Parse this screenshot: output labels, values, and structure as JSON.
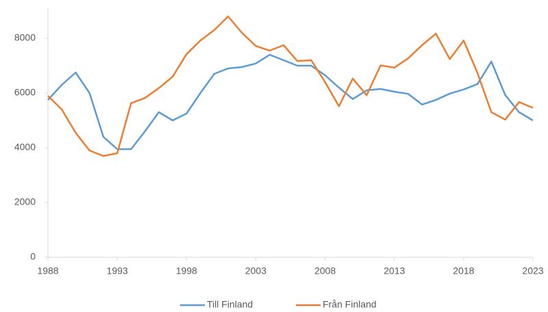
{
  "chart_data": {
    "type": "line",
    "x": [
      1988,
      1989,
      1990,
      1991,
      1992,
      1993,
      1994,
      1995,
      1996,
      1997,
      1998,
      1999,
      2000,
      2001,
      2002,
      2003,
      2004,
      2005,
      2006,
      2007,
      2008,
      2009,
      2010,
      2011,
      2012,
      2013,
      2014,
      2015,
      2016,
      2017,
      2018,
      2019,
      2020,
      2021,
      2022,
      2023
    ],
    "series": [
      {
        "name": "Till Finland",
        "color": "#5b9bd5",
        "values": [
          5750,
          6300,
          6750,
          6000,
          4400,
          3950,
          3950,
          4600,
          5300,
          5000,
          5250,
          6000,
          6700,
          6900,
          6950,
          7080,
          7400,
          7200,
          7000,
          7000,
          6650,
          6200,
          5780,
          6100,
          6150,
          6050,
          5970,
          5580,
          5750,
          5980,
          6130,
          6330,
          7150,
          5930,
          5300,
          5000
        ]
      },
      {
        "name": "Från Finland",
        "color": "#ed7d31",
        "values": [
          5900,
          5400,
          4550,
          3900,
          3700,
          3800,
          5630,
          5820,
          6180,
          6600,
          7420,
          7920,
          8300,
          8800,
          8200,
          7720,
          7550,
          7750,
          7170,
          7200,
          6400,
          5520,
          6530,
          5920,
          7010,
          6930,
          7270,
          7750,
          8170,
          7240,
          7920,
          6730,
          5300,
          5030,
          5670,
          5460
        ]
      }
    ],
    "xlim": [
      1988,
      2023
    ],
    "xticks": [
      1988,
      1993,
      1998,
      2003,
      2008,
      2013,
      2018,
      2023
    ],
    "ylim": [
      0,
      9000
    ],
    "yticks": [
      0,
      2000,
      4000,
      6000,
      8000
    ],
    "grid": false,
    "legend": "bottom"
  }
}
